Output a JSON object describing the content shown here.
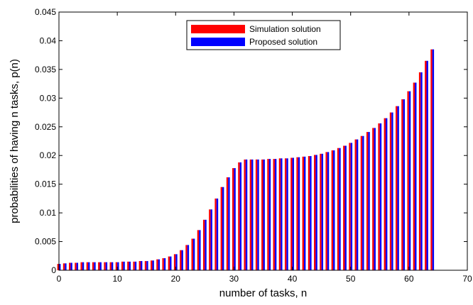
{
  "chart_data": {
    "type": "bar",
    "xlabel": "number of tasks, n",
    "ylabel": "probabilities of having n tasks, p(n)",
    "xlim": [
      0,
      70
    ],
    "ylim": [
      0,
      0.045
    ],
    "xticks": [
      0,
      10,
      20,
      30,
      40,
      50,
      60,
      70
    ],
    "yticks": [
      0,
      0.005,
      0.01,
      0.015,
      0.02,
      0.025,
      0.03,
      0.035,
      0.04,
      0.045
    ],
    "xtick_labels": [
      "0",
      "10",
      "20",
      "30",
      "40",
      "50",
      "60",
      "70"
    ],
    "ytick_labels": [
      "0",
      "0.005",
      "0.01",
      "0.015",
      "0.02",
      "0.025",
      "0.03",
      "0.035",
      "0.04",
      "0.045"
    ],
    "legend_position": "top-center",
    "grid": false,
    "x": [
      0,
      1,
      2,
      3,
      4,
      5,
      6,
      7,
      8,
      9,
      10,
      11,
      12,
      13,
      14,
      15,
      16,
      17,
      18,
      19,
      20,
      21,
      22,
      23,
      24,
      25,
      26,
      27,
      28,
      29,
      30,
      31,
      32,
      33,
      34,
      35,
      36,
      37,
      38,
      39,
      40,
      41,
      42,
      43,
      44,
      45,
      46,
      47,
      48,
      49,
      50,
      51,
      52,
      53,
      54,
      55,
      56,
      57,
      58,
      59,
      60,
      61,
      62,
      63,
      64
    ],
    "series": [
      {
        "name": "Simulation solution",
        "color": "#ff0000",
        "values": [
          0.0011,
          0.0012,
          0.0013,
          0.0013,
          0.0014,
          0.0014,
          0.0014,
          0.0014,
          0.0014,
          0.0014,
          0.0014,
          0.0015,
          0.0015,
          0.0015,
          0.0016,
          0.0016,
          0.0017,
          0.0019,
          0.0021,
          0.0024,
          0.0028,
          0.0035,
          0.0044,
          0.0055,
          0.007,
          0.0088,
          0.0106,
          0.0125,
          0.0145,
          0.0162,
          0.0178,
          0.0188,
          0.0193,
          0.0193,
          0.0193,
          0.0193,
          0.0194,
          0.0194,
          0.0195,
          0.0195,
          0.0196,
          0.0197,
          0.0198,
          0.0199,
          0.0201,
          0.0203,
          0.0206,
          0.0209,
          0.0213,
          0.0217,
          0.0222,
          0.0228,
          0.0234,
          0.0241,
          0.0248,
          0.0256,
          0.0265,
          0.0275,
          0.0286,
          0.0298,
          0.0312,
          0.0327,
          0.0345,
          0.0365,
          0.0385
        ]
      },
      {
        "name": "Proposed solution",
        "color": "#0000ff",
        "values": [
          0.0011,
          0.0012,
          0.0013,
          0.0013,
          0.0014,
          0.0014,
          0.0014,
          0.0014,
          0.0014,
          0.0014,
          0.0014,
          0.0015,
          0.0015,
          0.0015,
          0.0016,
          0.0016,
          0.0017,
          0.0019,
          0.0021,
          0.0024,
          0.0028,
          0.0035,
          0.0044,
          0.0055,
          0.007,
          0.0088,
          0.0106,
          0.0125,
          0.0145,
          0.0162,
          0.0178,
          0.0188,
          0.0193,
          0.0193,
          0.0193,
          0.0193,
          0.0194,
          0.0194,
          0.0195,
          0.0195,
          0.0196,
          0.0197,
          0.0198,
          0.0199,
          0.0201,
          0.0203,
          0.0206,
          0.0209,
          0.0213,
          0.0217,
          0.0222,
          0.0228,
          0.0234,
          0.0241,
          0.0248,
          0.0256,
          0.0265,
          0.0275,
          0.0286,
          0.0298,
          0.0312,
          0.0327,
          0.0345,
          0.0365,
          0.0385
        ]
      }
    ]
  }
}
